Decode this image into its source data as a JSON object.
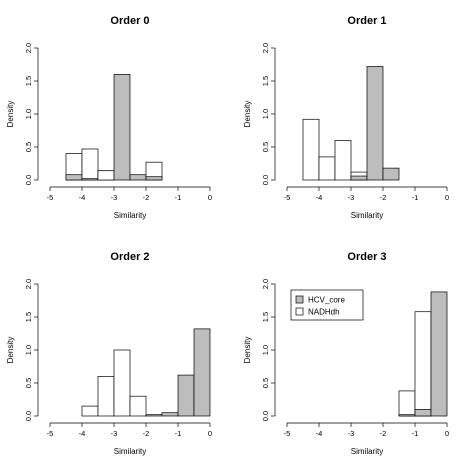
{
  "colors": {
    "hcv_core": "#bdbdbd",
    "nadhdh": "#ffffff",
    "axis": "#000000"
  },
  "legend": {
    "entries": [
      "HCV_core",
      "NADHdh"
    ],
    "location": "top-left of Order 3 panel"
  },
  "chart_data": [
    {
      "type": "bar",
      "title": "Order 0",
      "xlabel": "Similarity",
      "ylabel": "Density",
      "xlim": [
        -5,
        0
      ],
      "ylim": [
        0,
        2.0
      ],
      "xticks": [
        "-5",
        "-4",
        "-3",
        "-2",
        "-1",
        "0"
      ],
      "yticks": [
        "0.0",
        "0.5",
        "1.0",
        "1.5",
        "2.0"
      ],
      "bin_edges": [
        -4.5,
        -4.0,
        -3.5,
        -3.0,
        -2.5,
        -2.0,
        -1.5
      ],
      "series": [
        {
          "name": "HCV_core",
          "values": [
            0.08,
            0.02,
            0.14,
            1.6,
            0.08,
            0.05
          ]
        },
        {
          "name": "NADHdh",
          "values": [
            0.4,
            0.47,
            0.14,
            0.0,
            0.0,
            0.27
          ]
        }
      ]
    },
    {
      "type": "bar",
      "title": "Order 1",
      "xlabel": "Similarity",
      "ylabel": "Density",
      "xlim": [
        -5,
        0
      ],
      "ylim": [
        0,
        2.0
      ],
      "xticks": [
        "-5",
        "-4",
        "-3",
        "-2",
        "-1",
        "0"
      ],
      "yticks": [
        "0.0",
        "0.5",
        "1.0",
        "1.5",
        "2.0"
      ],
      "bin_edges": [
        -4.5,
        -4.0,
        -3.5,
        -3.0,
        -2.5,
        -2.0,
        -1.5
      ],
      "series": [
        {
          "name": "HCV_core",
          "values": [
            0.0,
            0.0,
            0.0,
            0.06,
            1.72,
            0.18
          ]
        },
        {
          "name": "NADHdh",
          "values": [
            0.92,
            0.35,
            0.6,
            0.12,
            0.0,
            0.0
          ]
        }
      ]
    },
    {
      "type": "bar",
      "title": "Order 2",
      "xlabel": "Similarity",
      "ylabel": "Density",
      "xlim": [
        -5,
        0
      ],
      "ylim": [
        0,
        2.0
      ],
      "xticks": [
        "-5",
        "-4",
        "-3",
        "-2",
        "-1",
        "0"
      ],
      "yticks": [
        "0.0",
        "0.5",
        "1.0",
        "1.5",
        "2.0"
      ],
      "bin_edges": [
        -4.0,
        -3.5,
        -3.0,
        -2.5,
        -2.0,
        -1.5,
        -1.0,
        -0.5,
        0.0
      ],
      "series": [
        {
          "name": "HCV_core",
          "values": [
            0.0,
            0.0,
            0.0,
            0.0,
            0.02,
            0.05,
            0.62,
            1.32
          ]
        },
        {
          "name": "NADHdh",
          "values": [
            0.15,
            0.6,
            1.0,
            0.3,
            0.0,
            0.0,
            0.0,
            0.0
          ]
        }
      ]
    },
    {
      "type": "bar",
      "title": "Order 3",
      "xlabel": "Similarity",
      "ylabel": "Density",
      "xlim": [
        -5,
        0
      ],
      "ylim": [
        0,
        2.0
      ],
      "xticks": [
        "-5",
        "-4",
        "-3",
        "-2",
        "-1",
        "0"
      ],
      "yticks": [
        "0.0",
        "0.5",
        "1.0",
        "1.5",
        "2.0"
      ],
      "bin_edges": [
        -1.5,
        -1.0,
        -0.5,
        0.0
      ],
      "series": [
        {
          "name": "HCV_core",
          "values": [
            0.02,
            0.1,
            1.88
          ]
        },
        {
          "name": "NADHdh",
          "values": [
            0.38,
            1.58,
            0.0
          ]
        }
      ]
    }
  ]
}
